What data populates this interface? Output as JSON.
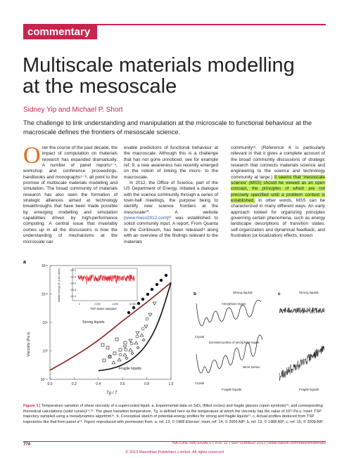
{
  "header": {
    "section_tag": "commentary"
  },
  "title_line1": "Multiscale materials modelling",
  "title_line2": "at the mesoscale",
  "authors": "Sidney Yip and Michael P. Short",
  "standfirst": "The challenge to link understanding and manipulation at the microscale to functional behaviour at the macroscale defines the frontiers of mesoscale science.",
  "body": {
    "col1_dropcap": "O",
    "col1_text": "ver the course of the past decade, the impact of computation on materials research has expanded dramatically. A number of panel reports¹⁻⁴, workshop and conference proceedings, handbooks and monographs⁵⁻⁸, all point to the promise of multiscale materials modelling and simulation. The broad community of materials research has also seen the formation of strategic alliances aimed at technology breakthroughs that have been made possible by emerging modelling and simulation capabilities driven by high-performance computing. A central issue that invariably comes up in all the discussions is how the understanding of mechanisms at the microscale can",
    "col2_text_a": "enable predictions of functional behaviour at the macroscale. Although this is a challenge that has not gone unnoticed, see for example ref. 9, a new awareness has recently emerged on the notion of linking the micro- to the macroscale.",
    "col2_text_b": "In 2012, the Office of Science, part of the US Department of Energy, initiated a dialogue with the science community through a series of town-hall meetings, the purpose being to identify new science frontiers at the mesoscale¹⁰. A website (",
    "col2_link": "www.meso2012.com",
    "col2_text_c": ")¹¹ was established to solicit community input. A report, From Quanta to the Continuum, has been released⁴ along with an overview of the findings relevant to the materials",
    "col3_text_a": "community¹². (Reference 4 is particularly relevant in that it gives a complete account of the broad community discussions of strategic research that connects materials science and engineering to the science and technology community at large.) ",
    "col3_highlight": "It seems that ‘mesoscale science’ (MSS) should be viewed as an open concept, the principles of which are not precisely specified until a problem context is established.",
    "col3_text_b": " In other words, MSS can be characterized in many different ways. An early approach looked for organizing principles governing certain phenomena, such as energy landscape descriptions of transition states, self-organization and dynamical feedback, and frustration (or localization) effects, known"
  },
  "figure": {
    "panel_a": "a",
    "panel_b": "b",
    "panel_c": "c",
    "ylabel": "Viscosity (Pa s)",
    "xlabel": "Tg / T",
    "y_ticks": [
      "10¹⁵",
      "10¹⁰",
      "10⁵",
      "10⁰",
      "10⁻⁵"
    ],
    "x_ticks": [
      "0.0",
      "0.2",
      "0.4",
      "0.6",
      "0.8",
      "1.0"
    ],
    "label_strong": "Strong liquids",
    "label_fragile": "Fragile liquids",
    "inset_ylabel": "Saddle energy (E_a per atom)",
    "inset_xlabel": "TSP states sampled",
    "inset_y_ticks": [
      "−20.2",
      "−20.4",
      "−20.6",
      "−20.8",
      "−21.0"
    ],
    "inset_x_ticks": [
      "0",
      "2,000",
      "4,000",
      "6,000"
    ],
    "b_strong": "Strong liquids",
    "b_amorphous": "Amorphous region",
    "b_crystal_top": "Crystal",
    "b_dominant": "Dominant portion of amorphous region",
    "b_minor": "Minor portion",
    "b_crystal_bottom": "Crystal",
    "b_fragile": "Fragile liquids",
    "c_strong": "Strong liquids",
    "c_fragile": "Fragile liquids",
    "colors": {
      "accent": "#c7254e",
      "strong_curve": "#8b1a1a",
      "fragile_curve": "#111111",
      "inset_line": "#e0202a"
    }
  },
  "chart_data": {
    "type": "line",
    "xlabel": "Tg / T",
    "ylabel": "Viscosity (Pa s)",
    "xlim": [
      0.0,
      1.0
    ],
    "ylim": [
      -5,
      15
    ],
    "series": [
      {
        "name": "Strong liquids",
        "x": [
          0.0,
          0.2,
          0.4,
          0.6,
          0.8,
          1.0
        ],
        "values": [
          -3.4,
          -1.0,
          1.8,
          5.3,
          8.5,
          12.0
        ]
      },
      {
        "name": "Fragile liquids",
        "x": [
          0.4,
          0.5,
          0.6,
          0.7,
          0.8,
          0.9,
          1.0
        ],
        "values": [
          -3.5,
          -3.2,
          -2.5,
          -1.2,
          1.0,
          5.0,
          12.0
        ]
      }
    ]
  },
  "caption": {
    "label": "Figure 1 |",
    "text": " Temperature variation of shear viscosity of a supercooled liquid. a, Experimental data on SiO₂ (filled circles) and fragile glasses (open symbols)¹³, and corresponding theoretical calculations (solid curves)¹⁴,¹⁶. The glass transition temperature, Tg, is defined here as the temperature at which the viscosity has the value of 10¹² Pa s. Inset: TSP trajectory sampled using a metadynamics algorithm¹⁶. b, Conceptual sketch of potential-energy profiles for strong and fragile liquids¹⁷. c, Actual profiles deduced from TSP trajectories like that from panel a¹⁴. Figure reproduced with permission from: a, ref. 13, © 1988 Elsevier; inset, ref. 14, © 2009 AIP; b, ref. 19, © 1988 AIP; c, ref. 15, © 2009 AIP."
  },
  "footer": {
    "page_number": "774",
    "journal": "NATURE MATERIALS | VOL 12 | SEPTEMBER 2013 | www.nature.com/naturematerials",
    "copyright": "© 2013 Macmillan Publishers Limited. All rights reserved"
  }
}
